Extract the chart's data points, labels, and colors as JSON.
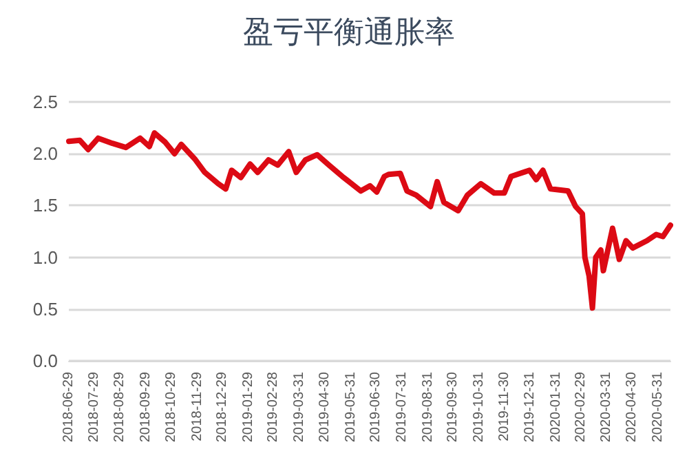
{
  "chart_data": {
    "type": "line",
    "title": "盈亏平衡通胀率",
    "x": [
      "2018-06-29",
      "2018-07-12",
      "2018-07-22",
      "2018-08-03",
      "2018-08-20",
      "2018-09-05",
      "2018-09-22",
      "2018-10-03",
      "2018-10-09",
      "2018-10-22",
      "2018-11-02",
      "2018-11-10",
      "2018-11-26",
      "2018-12-08",
      "2018-12-24",
      "2019-01-02",
      "2019-01-09",
      "2019-01-20",
      "2019-01-31",
      "2019-02-09",
      "2019-02-22",
      "2019-03-05",
      "2019-03-18",
      "2019-03-27",
      "2019-04-07",
      "2019-04-21",
      "2019-05-05",
      "2019-05-21",
      "2019-06-12",
      "2019-06-23",
      "2019-07-01",
      "2019-07-10",
      "2019-07-15",
      "2019-07-29",
      "2019-08-06",
      "2019-08-17",
      "2019-09-03",
      "2019-09-11",
      "2019-09-19",
      "2019-10-06",
      "2019-10-17",
      "2019-11-02",
      "2019-11-18",
      "2019-11-30",
      "2019-12-08",
      "2019-12-30",
      "2020-01-07",
      "2020-01-15",
      "2020-01-24",
      "2020-02-14",
      "2020-02-23",
      "2020-03-02",
      "2020-03-05",
      "2020-03-10",
      "2020-03-14",
      "2020-03-18",
      "2020-03-24",
      "2020-03-27",
      "2020-04-07",
      "2020-04-15",
      "2020-04-23",
      "2020-05-01",
      "2020-05-18",
      "2020-05-29",
      "2020-06-06",
      "2020-06-15"
    ],
    "series": [
      {
        "color": "#dc0a14",
        "values": [
          2.12,
          2.13,
          2.04,
          2.15,
          2.1,
          2.06,
          2.15,
          2.07,
          2.2,
          2.11,
          2.0,
          2.09,
          1.95,
          1.82,
          1.71,
          1.66,
          1.84,
          1.77,
          1.9,
          1.82,
          1.94,
          1.89,
          2.02,
          1.82,
          1.94,
          1.99,
          1.89,
          1.78,
          1.64,
          1.69,
          1.63,
          1.78,
          1.8,
          1.81,
          1.64,
          1.6,
          1.49,
          1.73,
          1.53,
          1.45,
          1.6,
          1.71,
          1.62,
          1.62,
          1.78,
          1.84,
          1.75,
          1.84,
          1.66,
          1.64,
          1.49,
          1.42,
          1.0,
          0.82,
          0.51,
          1.0,
          1.07,
          0.87,
          1.28,
          0.98,
          1.16,
          1.09,
          1.16,
          1.22,
          1.2,
          1.31
        ]
      }
    ],
    "xlim": [
      "2018-06-29",
      "2020-06-15"
    ],
    "xticks": [
      "2018-06-29",
      "2018-07-29",
      "2018-08-29",
      "2018-09-29",
      "2018-10-29",
      "2018-11-29",
      "2018-12-29",
      "2019-01-29",
      "2019-02-28",
      "2019-03-31",
      "2019-04-30",
      "2019-05-31",
      "2019-06-30",
      "2019-07-31",
      "2019-08-31",
      "2019-09-30",
      "2019-10-31",
      "2019-11-30",
      "2019-12-31",
      "2020-01-31",
      "2020-02-29",
      "2020-03-31",
      "2020-04-30",
      "2020-05-31"
    ],
    "ylim": [
      0,
      2.5
    ],
    "yticks": [
      {
        "value": 0,
        "label": "0.0"
      },
      {
        "value": 0.5,
        "label": "0.5"
      },
      {
        "value": 1,
        "label": "1.0"
      },
      {
        "value": 1.5,
        "label": "1.5"
      },
      {
        "value": 2,
        "label": "2.0"
      },
      {
        "value": 2.5,
        "label": "2.5"
      }
    ],
    "grid": "y",
    "marker": "none",
    "line_style": "solid"
  }
}
